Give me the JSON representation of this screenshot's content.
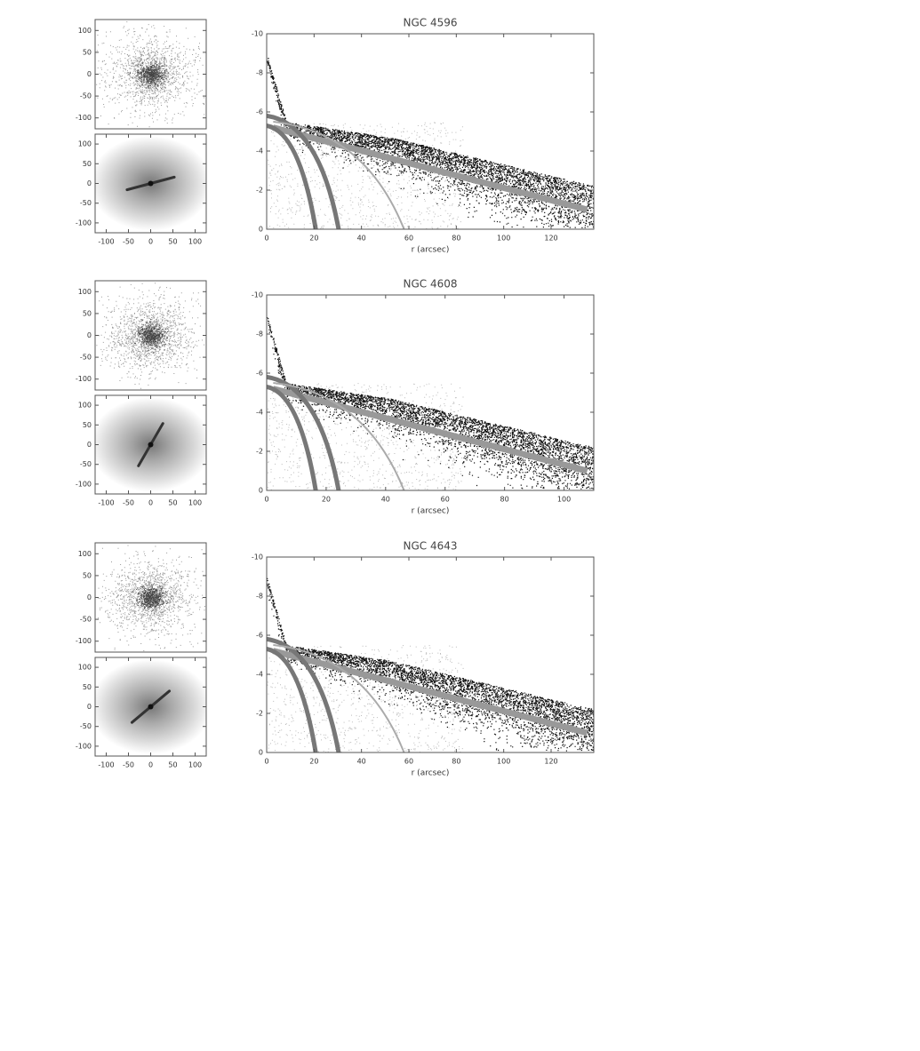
{
  "chart_data": [
    {
      "type": "image",
      "ylim": [
        -125,
        125
      ],
      "yticks": [
        -100,
        -50,
        0,
        50,
        100
      ]
    },
    {
      "type": "image",
      "xlim": [
        -125,
        125
      ],
      "ylim": [
        -125,
        125
      ],
      "xticks": [
        -100,
        -50,
        0,
        50,
        100
      ],
      "yticks": [
        -100,
        -50,
        0,
        50,
        100
      ]
    },
    {
      "type": "scatter",
      "title": "NGC 4596",
      "x_label": "r (arcsec)",
      "xlim": [
        0,
        138
      ],
      "ylim": [
        0,
        -10
      ],
      "xticks": [
        0,
        20,
        40,
        60,
        80,
        100,
        120
      ],
      "yticks": [
        -10,
        -8,
        -6,
        -4,
        -2,
        0
      ]
    },
    {
      "type": "image",
      "ylim": [
        -125,
        125
      ],
      "yticks": [
        -100,
        -50,
        0,
        50,
        100
      ]
    },
    {
      "type": "image",
      "xlim": [
        -125,
        125
      ],
      "ylim": [
        -125,
        125
      ],
      "xticks": [
        -100,
        -50,
        0,
        50,
        100
      ],
      "yticks": [
        -100,
        -50,
        0,
        50,
        100
      ]
    },
    {
      "type": "scatter",
      "title": "NGC 4608",
      "x_label": "r (arcsec)",
      "xlim": [
        0,
        110
      ],
      "ylim": [
        0,
        -10
      ],
      "xticks": [
        0,
        20,
        40,
        60,
        80,
        100
      ],
      "yticks": [
        -10,
        -8,
        -6,
        -4,
        -2,
        0
      ]
    },
    {
      "type": "image",
      "ylim": [
        -125,
        125
      ],
      "yticks": [
        -100,
        -50,
        0,
        50,
        100
      ]
    },
    {
      "type": "image",
      "xlim": [
        -125,
        125
      ],
      "ylim": [
        -125,
        125
      ],
      "xticks": [
        -100,
        -50,
        0,
        50,
        100
      ],
      "yticks": [
        -100,
        -50,
        0,
        50,
        100
      ]
    },
    {
      "type": "scatter",
      "title": "NGC 4643",
      "x_label": "r (arcsec)",
      "xlim": [
        0,
        138
      ],
      "ylim": [
        0,
        -10
      ],
      "xticks": [
        0,
        20,
        40,
        60,
        80,
        100,
        120
      ],
      "yticks": [
        -10,
        -8,
        -6,
        -4,
        -2,
        0
      ]
    }
  ]
}
